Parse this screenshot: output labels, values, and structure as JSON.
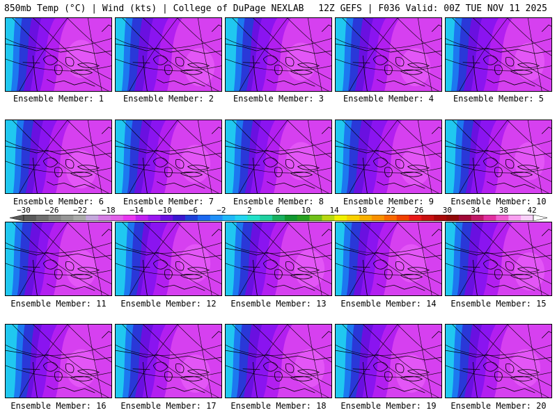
{
  "header": {
    "left_title": "850mb Temp (°C) | Wind (kts) | College of DuPage NEXLAB",
    "right_title": "12Z GEFS | F036 Valid: 00Z TUE NOV 11 2025"
  },
  "colorbar": {
    "labels": [
      "−30",
      "−26",
      "−22",
      "−18",
      "−14",
      "−10",
      "−6",
      "−2",
      "2",
      "6",
      "10",
      "14",
      "18",
      "22",
      "26",
      "30",
      "34",
      "38",
      "42"
    ],
    "colors": [
      "#5a5a5a",
      "#6e6e6e",
      "#828282",
      "#969696",
      "#aaaaaa",
      "#c4a8dc",
      "#d47ee4",
      "#e060e8",
      "#e838f0",
      "#c020f0",
      "#9a18f0",
      "#6a10e0",
      "#3a18d0",
      "#1e40d8",
      "#1c68f0",
      "#2090f8",
      "#20b8f8",
      "#24d4f0",
      "#22e0c8",
      "#20d0a0",
      "#18b060",
      "#109830",
      "#28a020",
      "#70c018",
      "#b8d810",
      "#f0f000",
      "#f8d000",
      "#f8b000",
      "#f89000",
      "#f86800",
      "#f04000",
      "#e81818",
      "#c81010",
      "#a80808",
      "#900808",
      "#a00838",
      "#c01868",
      "#e030a0",
      "#f060d0",
      "#f8a0f0",
      "#f8d0f8"
    ]
  },
  "members": [
    {
      "caption": "Ensemble Member: 1"
    },
    {
      "caption": "Ensemble Member: 2"
    },
    {
      "caption": "Ensemble Member: 3"
    },
    {
      "caption": "Ensemble Member: 4"
    },
    {
      "caption": "Ensemble Member: 5"
    },
    {
      "caption": "Ensemble Member: 6"
    },
    {
      "caption": "Ensemble Member: 7"
    },
    {
      "caption": "Ensemble Member: 8"
    },
    {
      "caption": "Ensemble Member: 9"
    },
    {
      "caption": "Ensemble Member: 10"
    },
    {
      "caption": "Ensemble Member: 11"
    },
    {
      "caption": "Ensemble Member: 12"
    },
    {
      "caption": "Ensemble Member: 13"
    },
    {
      "caption": "Ensemble Member: 14"
    },
    {
      "caption": "Ensemble Member: 15"
    },
    {
      "caption": "Ensemble Member: 16"
    },
    {
      "caption": "Ensemble Member: 17"
    },
    {
      "caption": "Ensemble Member: 18"
    },
    {
      "caption": "Ensemble Member: 19"
    },
    {
      "caption": "Ensemble Member: 20"
    }
  ]
}
